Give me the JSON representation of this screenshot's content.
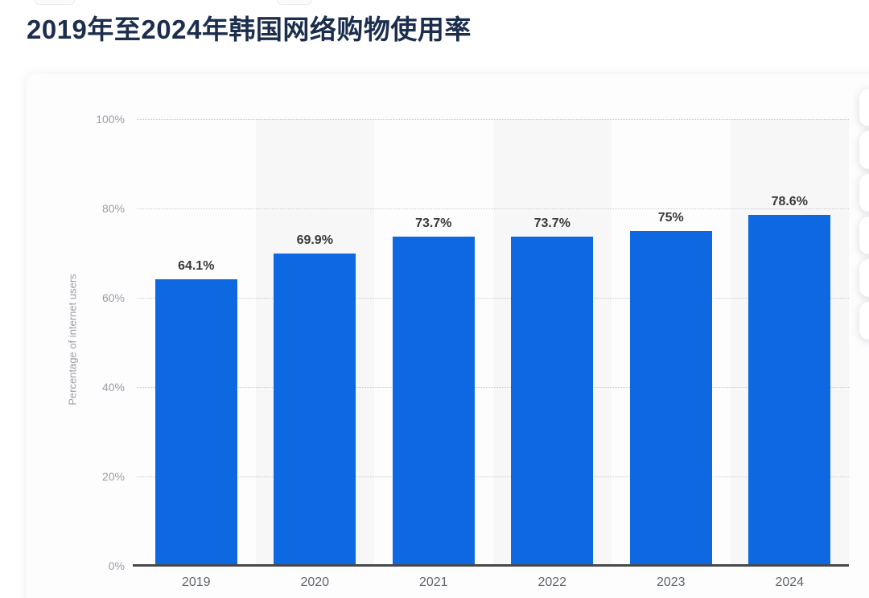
{
  "page": {
    "title": "2019年至2024年韩国网络购物使用率"
  },
  "chart_data": {
    "type": "bar",
    "title": "2019年至2024年韩国网络购物使用率",
    "categories": [
      "2019",
      "2020",
      "2021",
      "2022",
      "2023",
      "2024"
    ],
    "values": [
      64.1,
      69.9,
      73.7,
      73.7,
      75,
      78.6
    ],
    "value_labels": [
      "64.1%",
      "69.9%",
      "73.7%",
      "73.7%",
      "75%",
      "78.6%"
    ],
    "xlabel": "",
    "ylabel": "Percentage of internet users",
    "ylim": [
      0,
      100
    ],
    "yticks": [
      0,
      20,
      40,
      60,
      80,
      100
    ],
    "ytick_labels": [
      "0%",
      "20%",
      "40%",
      "60%",
      "80%",
      "100%"
    ],
    "grid": "horizontal-dotted",
    "legend": "none",
    "shaded_columns": [
      "2020",
      "2022",
      "2024"
    ],
    "colors": {
      "bar": "#0e68e1",
      "column_band": "#f7f7f8",
      "gridline": "#c9ccd1",
      "axis_line": "#46484a",
      "tick_label": "#9a9ea4",
      "value_label": "#3a3a3c",
      "category_label": "#60666c",
      "title": "#1c2e4d"
    }
  },
  "side_toolbar": {
    "button_count": 6
  }
}
